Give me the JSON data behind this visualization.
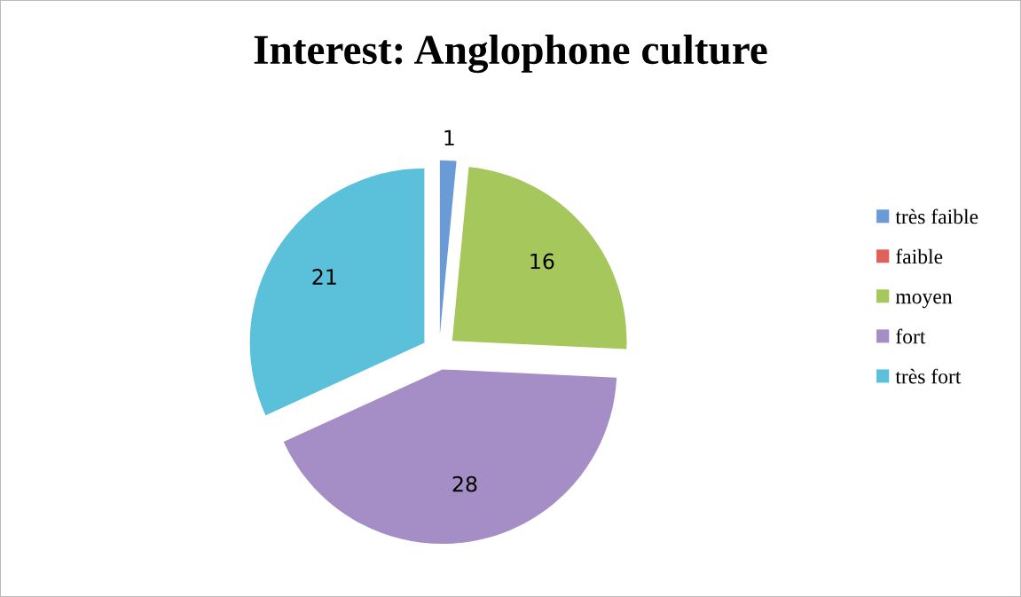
{
  "chart_data": {
    "type": "pie",
    "title": "Interest: Anglophone culture",
    "categories": [
      "très faible",
      "faible",
      "moyen",
      "fort",
      "très fort"
    ],
    "values": [
      1,
      0,
      16,
      28,
      21
    ],
    "value_labels": [
      "1",
      null,
      "16",
      "28",
      "21"
    ],
    "colors": [
      "#6a9bd6",
      "#e0605c",
      "#a5c75b",
      "#a58dc6",
      "#5bc1da"
    ],
    "legend": "right"
  }
}
